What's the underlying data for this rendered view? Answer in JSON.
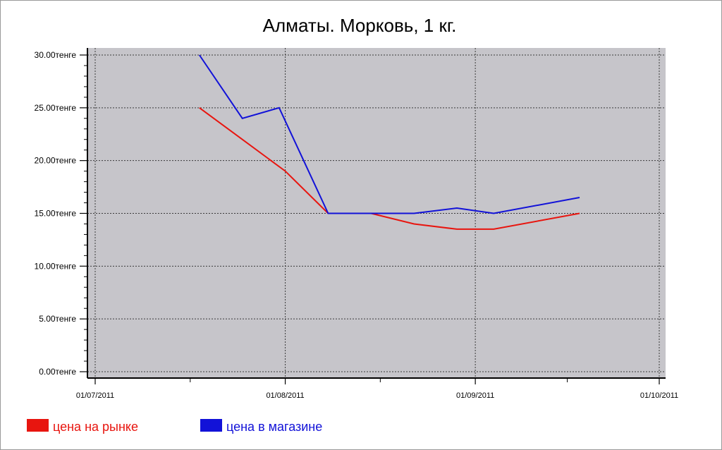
{
  "chart_data": {
    "type": "line",
    "title": "Алматы. Морковь, 1 кг.",
    "xlabel": "",
    "ylabel": "",
    "x_axis_type": "date",
    "xlim": [
      "2011-07-01",
      "2011-10-01"
    ],
    "ylim": [
      0,
      30
    ],
    "y_ticks": [
      0,
      5,
      10,
      15,
      20,
      25,
      30
    ],
    "y_tick_labels": [
      "0.00тенге",
      "5.00тенге",
      "10.00тенге",
      "15.00тенге",
      "20.00тенге",
      "25.00тенге",
      "30.00тенге"
    ],
    "x_ticks": [
      "2011-07-01",
      "2011-08-01",
      "2011-09-01",
      "2011-10-01"
    ],
    "x_tick_labels": [
      "01/07/2011",
      "01/08/2011",
      "01/09/2011",
      "01/10/2011"
    ],
    "grid": true,
    "background_color": "#c6c5ca",
    "legend_position": "bottom-left",
    "series": [
      {
        "name": "цена на рынке",
        "color": "#e8150f",
        "points": [
          {
            "x": "2011-07-18",
            "y": 25.0
          },
          {
            "x": "2011-07-25",
            "y": 22.0
          },
          {
            "x": "2011-08-01",
            "y": 19.0
          },
          {
            "x": "2011-08-08",
            "y": 15.0
          },
          {
            "x": "2011-08-15",
            "y": 15.0
          },
          {
            "x": "2011-08-22",
            "y": 14.0
          },
          {
            "x": "2011-08-29",
            "y": 13.5
          },
          {
            "x": "2011-09-04",
            "y": 13.5
          },
          {
            "x": "2011-09-18",
            "y": 15.0
          }
        ]
      },
      {
        "name": "цена в магазине",
        "color": "#1212d8",
        "points": [
          {
            "x": "2011-07-18",
            "y": 30.0
          },
          {
            "x": "2011-07-25",
            "y": 24.0
          },
          {
            "x": "2011-07-31",
            "y": 25.0
          },
          {
            "x": "2011-08-08",
            "y": 15.0
          },
          {
            "x": "2011-08-15",
            "y": 15.0
          },
          {
            "x": "2011-08-22",
            "y": 15.0
          },
          {
            "x": "2011-08-29",
            "y": 15.5
          },
          {
            "x": "2011-09-04",
            "y": 15.0
          },
          {
            "x": "2011-09-18",
            "y": 16.5
          }
        ]
      }
    ]
  }
}
